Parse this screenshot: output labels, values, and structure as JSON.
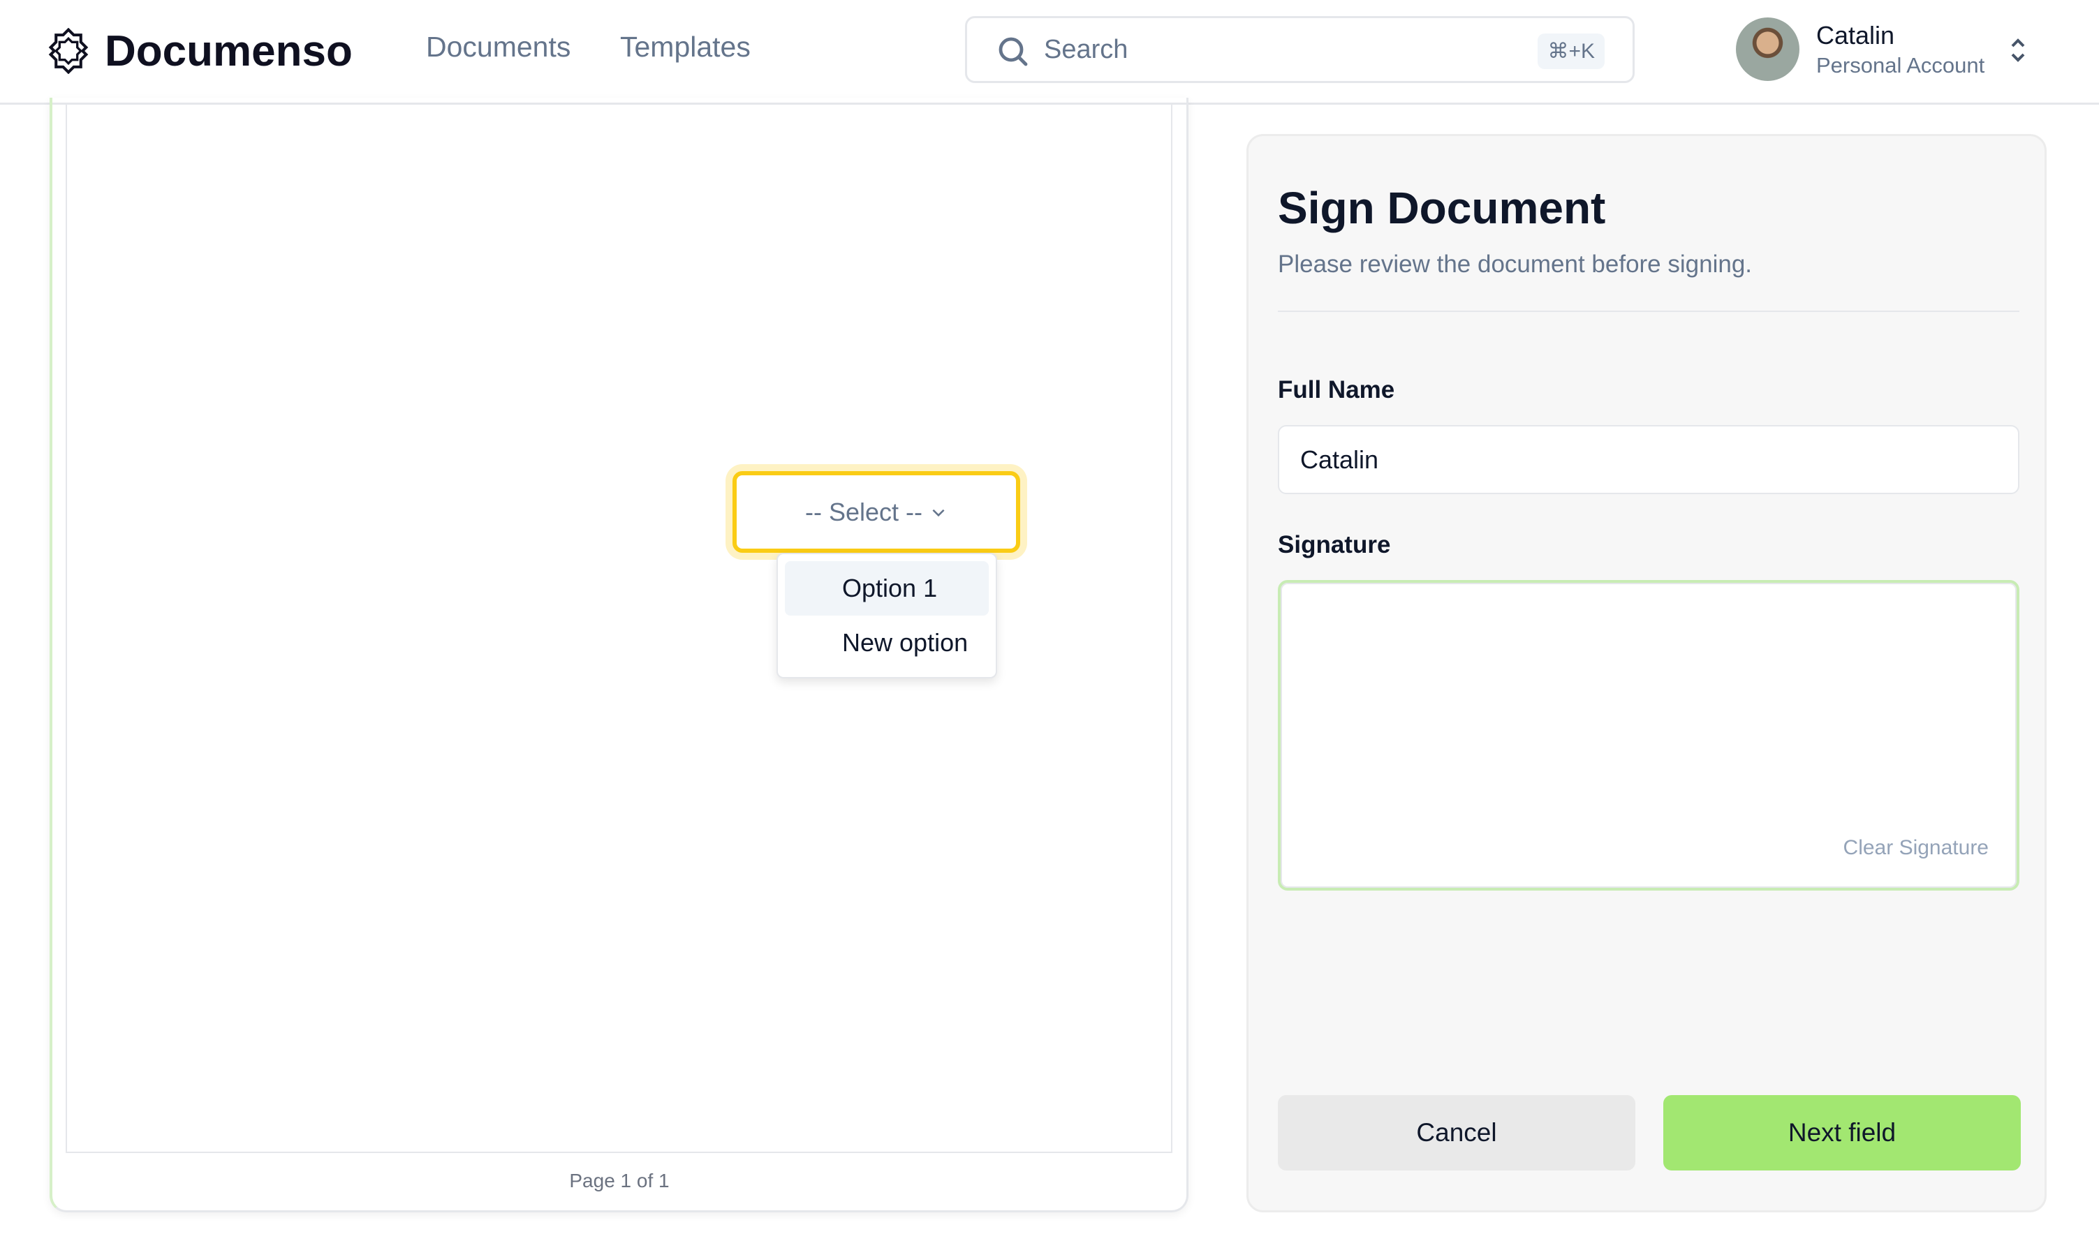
{
  "header": {
    "brand": "Documenso",
    "nav": [
      "Documents",
      "Templates"
    ],
    "search": {
      "placeholder": "Search",
      "shortcut": "⌘+K"
    },
    "user": {
      "name": "Catalin",
      "account": "Personal Account"
    }
  },
  "document": {
    "page_indicator": "Page 1 of 1",
    "select_field": {
      "placeholder": "-- Select --",
      "options": [
        "Option 1",
        "New option"
      ],
      "highlighted": "Option 1"
    }
  },
  "panel": {
    "title": "Sign Document",
    "subtitle": "Please review the document before signing.",
    "full_name_label": "Full Name",
    "full_name_value": "Catalin",
    "signature_label": "Signature",
    "clear_signature": "Clear Signature",
    "cancel": "Cancel",
    "next": "Next field"
  },
  "colors": {
    "accent": "#a2e771",
    "field_highlight": "#facc15"
  }
}
